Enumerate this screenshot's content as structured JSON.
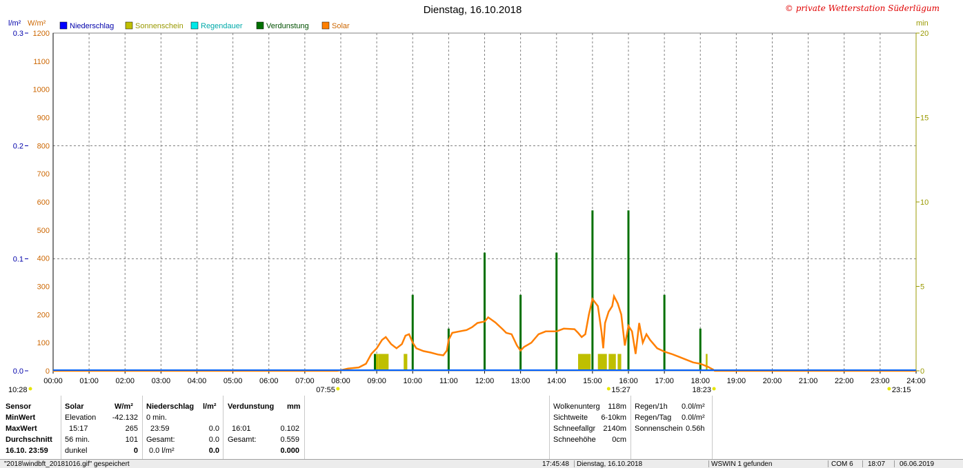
{
  "header": {
    "title": "Dienstag, 16.10.2018",
    "copyright": "© private Wetterstation Süderlügum",
    "left_unit_1": "l/m²",
    "left_unit_2": "W/m²",
    "right_unit": "min"
  },
  "legend": [
    {
      "label": "Niederschlag",
      "color": "#0000ff"
    },
    {
      "label": "Sonnenschein",
      "color": "#bfbf00"
    },
    {
      "label": "Regendauer",
      "color": "#00e8e8"
    },
    {
      "label": "Verdunstung",
      "color": "#007000"
    },
    {
      "label": "Solar",
      "color": "#ff7f00"
    }
  ],
  "colors": {
    "solar": "#ff7f00",
    "sunshine": "#bfbf00",
    "evaporation": "#007000",
    "precip": "#0000ff",
    "grid": "#808080"
  },
  "chart_data": {
    "type": "line",
    "x_unit": "hour",
    "xlim": [
      0,
      24
    ],
    "x_ticks": [
      "00:00",
      "01:00",
      "02:00",
      "03:00",
      "04:00",
      "05:00",
      "06:00",
      "07:00",
      "08:00",
      "09:00",
      "10:00",
      "11:00",
      "12:00",
      "13:00",
      "14:00",
      "15:00",
      "16:00",
      "17:00",
      "18:00",
      "19:00",
      "20:00",
      "21:00",
      "22:00",
      "23:00",
      "24:00"
    ],
    "y_precip_ticks": [
      "0.0",
      "0.1",
      "0.2",
      "0.3"
    ],
    "y_solar_ticks": [
      "0",
      "100",
      "200",
      "300",
      "400",
      "500",
      "600",
      "700",
      "800",
      "900",
      "1000",
      "1100",
      "1200"
    ],
    "y_solar_lim": [
      0,
      1200
    ],
    "y_min_ticks": [
      "0",
      "5",
      "10",
      "15",
      "20"
    ],
    "y_min_lim": [
      0,
      20
    ],
    "markers": [
      {
        "label": "10:28",
        "x": 0.0
      },
      {
        "label": "07:55",
        "x": 7.92
      },
      {
        "label": "15:27",
        "x": 15.45
      },
      {
        "label": "18:23",
        "x": 18.38
      },
      {
        "label": "23:15",
        "x": 23.25
      }
    ],
    "series": [
      {
        "name": "Solar",
        "axis": "W/m²",
        "points": [
          [
            0,
            0
          ],
          [
            7.9,
            0
          ],
          [
            8.0,
            2
          ],
          [
            8.2,
            8
          ],
          [
            8.5,
            12
          ],
          [
            8.7,
            25
          ],
          [
            8.85,
            60
          ],
          [
            9.0,
            80
          ],
          [
            9.15,
            110
          ],
          [
            9.25,
            120
          ],
          [
            9.4,
            95
          ],
          [
            9.55,
            80
          ],
          [
            9.7,
            95
          ],
          [
            9.8,
            125
          ],
          [
            9.9,
            130
          ],
          [
            10.0,
            100
          ],
          [
            10.1,
            80
          ],
          [
            10.3,
            70
          ],
          [
            10.5,
            65
          ],
          [
            10.7,
            58
          ],
          [
            10.85,
            55
          ],
          [
            10.95,
            72
          ],
          [
            11.0,
            110
          ],
          [
            11.1,
            135
          ],
          [
            11.3,
            140
          ],
          [
            11.5,
            145
          ],
          [
            11.65,
            155
          ],
          [
            11.8,
            170
          ],
          [
            12.0,
            175
          ],
          [
            12.1,
            190
          ],
          [
            12.3,
            172
          ],
          [
            12.5,
            148
          ],
          [
            12.6,
            135
          ],
          [
            12.75,
            130
          ],
          [
            12.9,
            90
          ],
          [
            13.0,
            72
          ],
          [
            13.1,
            85
          ],
          [
            13.3,
            100
          ],
          [
            13.4,
            115
          ],
          [
            13.5,
            130
          ],
          [
            13.7,
            140
          ],
          [
            14.0,
            140
          ],
          [
            14.2,
            150
          ],
          [
            14.5,
            148
          ],
          [
            14.6,
            135
          ],
          [
            14.7,
            120
          ],
          [
            14.8,
            130
          ],
          [
            14.9,
            200
          ],
          [
            15.0,
            255
          ],
          [
            15.15,
            230
          ],
          [
            15.25,
            140
          ],
          [
            15.3,
            80
          ],
          [
            15.35,
            170
          ],
          [
            15.45,
            210
          ],
          [
            15.55,
            230
          ],
          [
            15.6,
            265
          ],
          [
            15.7,
            240
          ],
          [
            15.8,
            200
          ],
          [
            15.9,
            90
          ],
          [
            16.0,
            160
          ],
          [
            16.1,
            140
          ],
          [
            16.2,
            60
          ],
          [
            16.3,
            170
          ],
          [
            16.4,
            100
          ],
          [
            16.5,
            130
          ],
          [
            16.6,
            110
          ],
          [
            16.8,
            80
          ],
          [
            17.0,
            68
          ],
          [
            17.2,
            60
          ],
          [
            17.4,
            50
          ],
          [
            17.6,
            40
          ],
          [
            17.8,
            30
          ],
          [
            18.0,
            25
          ],
          [
            18.2,
            15
          ],
          [
            18.35,
            5
          ],
          [
            18.4,
            0
          ],
          [
            24,
            0
          ]
        ]
      },
      {
        "name": "Verdunstung",
        "axis": "mm",
        "bars": [
          [
            8.95,
            1
          ],
          [
            10.0,
            4.5
          ],
          [
            11.0,
            2.5
          ],
          [
            12.0,
            7
          ],
          [
            13.0,
            4.5
          ],
          [
            14.0,
            7
          ],
          [
            15.0,
            9.5
          ],
          [
            16.0,
            9.5
          ],
          [
            17.0,
            4.5
          ],
          [
            18.0,
            2.5
          ]
        ]
      },
      {
        "name": "Sonnenschein",
        "axis": "min",
        "bars": [
          [
            8.95,
            9.05,
            1
          ],
          [
            9.05,
            9.33,
            1
          ],
          [
            9.75,
            9.85,
            1
          ],
          [
            14.6,
            14.95,
            1
          ],
          [
            15.15,
            15.4,
            1
          ],
          [
            15.45,
            15.65,
            1
          ],
          [
            15.7,
            15.8,
            1
          ],
          [
            18.15,
            18.2,
            1
          ]
        ]
      },
      {
        "name": "Niederschlag",
        "axis": "l/m²",
        "values": [
          0
        ]
      }
    ]
  },
  "panel": {
    "sensor": {
      "h": "Sensor",
      "r1": "MinWert",
      "r2": "MaxWert",
      "r3": "Durchschnitt",
      "r4": "16.10. 23:59"
    },
    "solar": {
      "h": "Solar",
      "unit": "W/m²",
      "r1a": "Elevation",
      "r1b": "-42.132",
      "r2a": "15:17",
      "r2b": "265",
      "r3a": "56 min.",
      "r3b": "101",
      "r4a": "dunkel",
      "r4b": "0"
    },
    "niederschlag": {
      "h": "Niederschlag",
      "unit": "l/m²",
      "r1a": "0 min.",
      "r1b": "",
      "r2a": "23:59",
      "r2b": "0.0",
      "r3a": "Gesamt:",
      "r3b": "0.0",
      "r4a": "0.0 l/m²",
      "r4b": "0.0"
    },
    "verdunstung": {
      "h": "Verdunstung",
      "unit": "mm",
      "r2a": "16:01",
      "r2b": "0.102",
      "r3a": "Gesamt:",
      "r3b": "0.559",
      "r4b": "0.000"
    },
    "cloud": {
      "r1a": "Wolkenunterg",
      "r1b": "118m",
      "r2a": "Sichtweite",
      "r2b": "6-10km",
      "r3a": "Schneefallgr",
      "r3b": "2140m",
      "r4a": "Schneehöhe",
      "r4b": "0cm"
    },
    "rain": {
      "r1a": "Regen/1h",
      "r1b": "0.0l/m²",
      "r2a": "Regen/Tag",
      "r2b": "0.0l/m²",
      "r3a": "Sonnenschein",
      "r3b": "0.56h"
    }
  },
  "statusbar": {
    "file": "\"2018\\windbft_20181016.gif\" gespeichert",
    "time": "17:45:48",
    "date": "Dienstag, 16.10.2018",
    "found": "WSWIN 1 gefunden",
    "com": "COM 6",
    "clock": "18:07",
    "today": "06.06.2019"
  }
}
